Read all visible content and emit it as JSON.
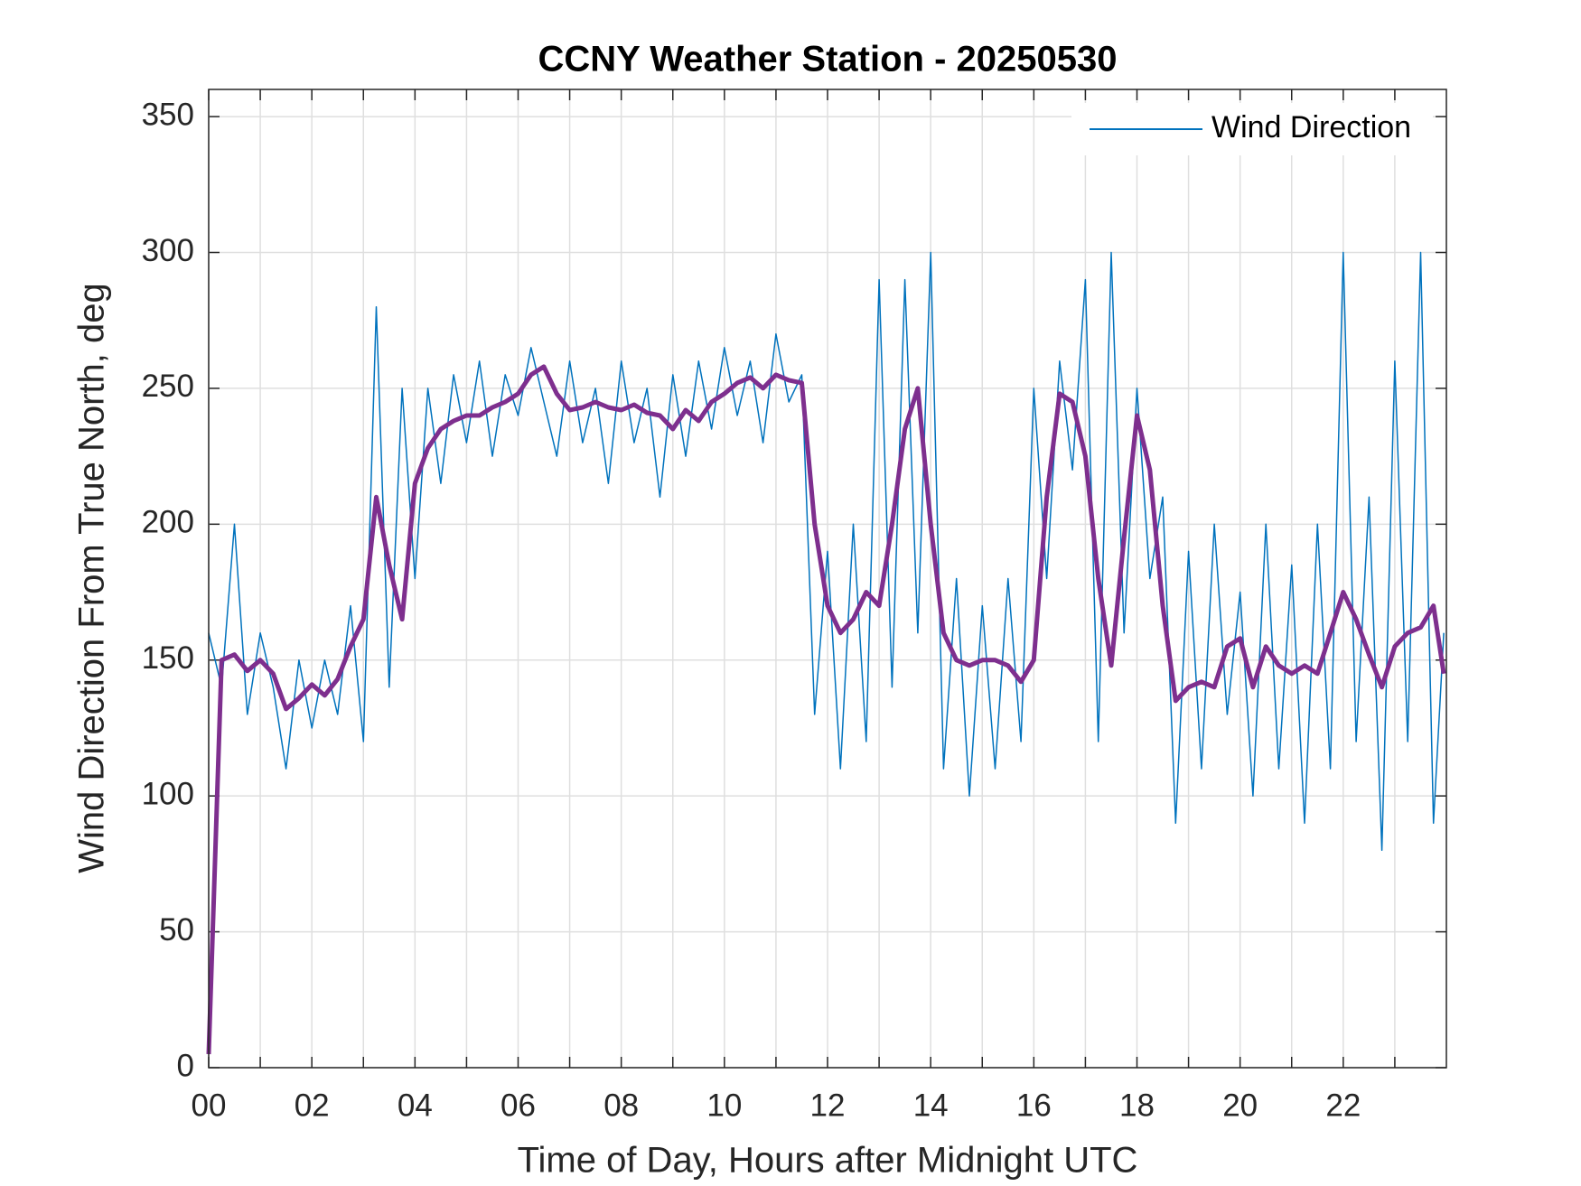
{
  "chart_data": {
    "type": "line",
    "title": "CCNY Weather Station - 20250530",
    "xlabel": "Time of Day, Hours after Midnight UTC",
    "ylabel": "Wind Direction From True North, deg",
    "x": [
      0,
      0.25,
      0.5,
      0.75,
      1,
      1.25,
      1.5,
      1.75,
      2,
      2.25,
      2.5,
      2.75,
      3,
      3.25,
      3.5,
      3.75,
      4,
      4.25,
      4.5,
      4.75,
      5,
      5.25,
      5.5,
      5.75,
      6,
      6.25,
      6.5,
      6.75,
      7,
      7.25,
      7.5,
      7.75,
      8,
      8.25,
      8.5,
      8.75,
      9,
      9.25,
      9.5,
      9.75,
      10,
      10.25,
      10.5,
      10.75,
      11,
      11.25,
      11.5,
      11.75,
      12,
      12.25,
      12.5,
      12.75,
      13,
      13.25,
      13.5,
      13.75,
      14,
      14.25,
      14.5,
      14.75,
      15,
      15.25,
      15.5,
      15.75,
      16,
      16.25,
      16.5,
      16.75,
      17,
      17.25,
      17.5,
      17.75,
      18,
      18.25,
      18.5,
      18.75,
      19,
      19.25,
      19.5,
      19.75,
      20,
      20.25,
      20.5,
      20.75,
      21,
      21.25,
      21.5,
      21.75,
      22,
      22.25,
      22.5,
      22.75,
      23,
      23.25,
      23.5,
      23.75,
      23.95
    ],
    "series": [
      {
        "name": "Wind Direction",
        "color": "#0072bd",
        "width": 1.5,
        "values": [
          160,
          140,
          200,
          130,
          160,
          140,
          110,
          150,
          125,
          150,
          130,
          170,
          120,
          280,
          140,
          250,
          180,
          250,
          215,
          255,
          230,
          260,
          225,
          255,
          240,
          265,
          245,
          225,
          260,
          230,
          250,
          215,
          260,
          230,
          250,
          210,
          255,
          225,
          260,
          235,
          265,
          240,
          260,
          230,
          270,
          245,
          255,
          130,
          190,
          110,
          200,
          120,
          290,
          140,
          290,
          160,
          300,
          110,
          180,
          100,
          170,
          110,
          180,
          120,
          250,
          180,
          260,
          220,
          290,
          120,
          300,
          160,
          250,
          180,
          210,
          90,
          190,
          110,
          200,
          130,
          175,
          100,
          200,
          110,
          185,
          90,
          200,
          110,
          300,
          120,
          210,
          80,
          260,
          120,
          300,
          90,
          160
        ]
      },
      {
        "color": "#7e2f8e",
        "width": 5,
        "values": [
          5,
          150,
          152,
          146,
          150,
          145,
          132,
          136,
          141,
          137,
          143,
          155,
          165,
          210,
          185,
          165,
          215,
          228,
          235,
          238,
          240,
          240,
          243,
          245,
          248,
          255,
          258,
          248,
          242,
          243,
          245,
          243,
          242,
          244,
          241,
          240,
          235,
          242,
          238,
          245,
          248,
          252,
          254,
          250,
          255,
          253,
          252,
          200,
          170,
          160,
          165,
          175,
          170,
          200,
          235,
          250,
          200,
          160,
          150,
          148,
          150,
          150,
          148,
          142,
          150,
          210,
          248,
          245,
          225,
          180,
          148,
          195,
          240,
          220,
          170,
          135,
          140,
          142,
          140,
          155,
          158,
          140,
          155,
          148,
          145,
          148,
          145,
          160,
          175,
          165,
          152,
          140,
          155,
          160,
          162,
          170,
          145
        ]
      }
    ],
    "xlim": [
      0,
      24
    ],
    "xticks": [
      {
        "value": 0,
        "label": "00"
      },
      {
        "value": 2,
        "label": "02"
      },
      {
        "value": 4,
        "label": "04"
      },
      {
        "value": 6,
        "label": "06"
      },
      {
        "value": 8,
        "label": "08"
      },
      {
        "value": 10,
        "label": "10"
      },
      {
        "value": 12,
        "label": "12"
      },
      {
        "value": 14,
        "label": "14"
      },
      {
        "value": 16,
        "label": "16"
      },
      {
        "value": 18,
        "label": "18"
      },
      {
        "value": 20,
        "label": "20"
      },
      {
        "value": 22,
        "label": "22"
      }
    ],
    "xminorticks": [
      1,
      3,
      5,
      7,
      9,
      11,
      13,
      15,
      17,
      19,
      21,
      23
    ],
    "ylim": [
      0,
      360
    ],
    "yticks": [
      0,
      50,
      100,
      150,
      200,
      250,
      300,
      350
    ],
    "grid": true,
    "legend": "top-right"
  }
}
